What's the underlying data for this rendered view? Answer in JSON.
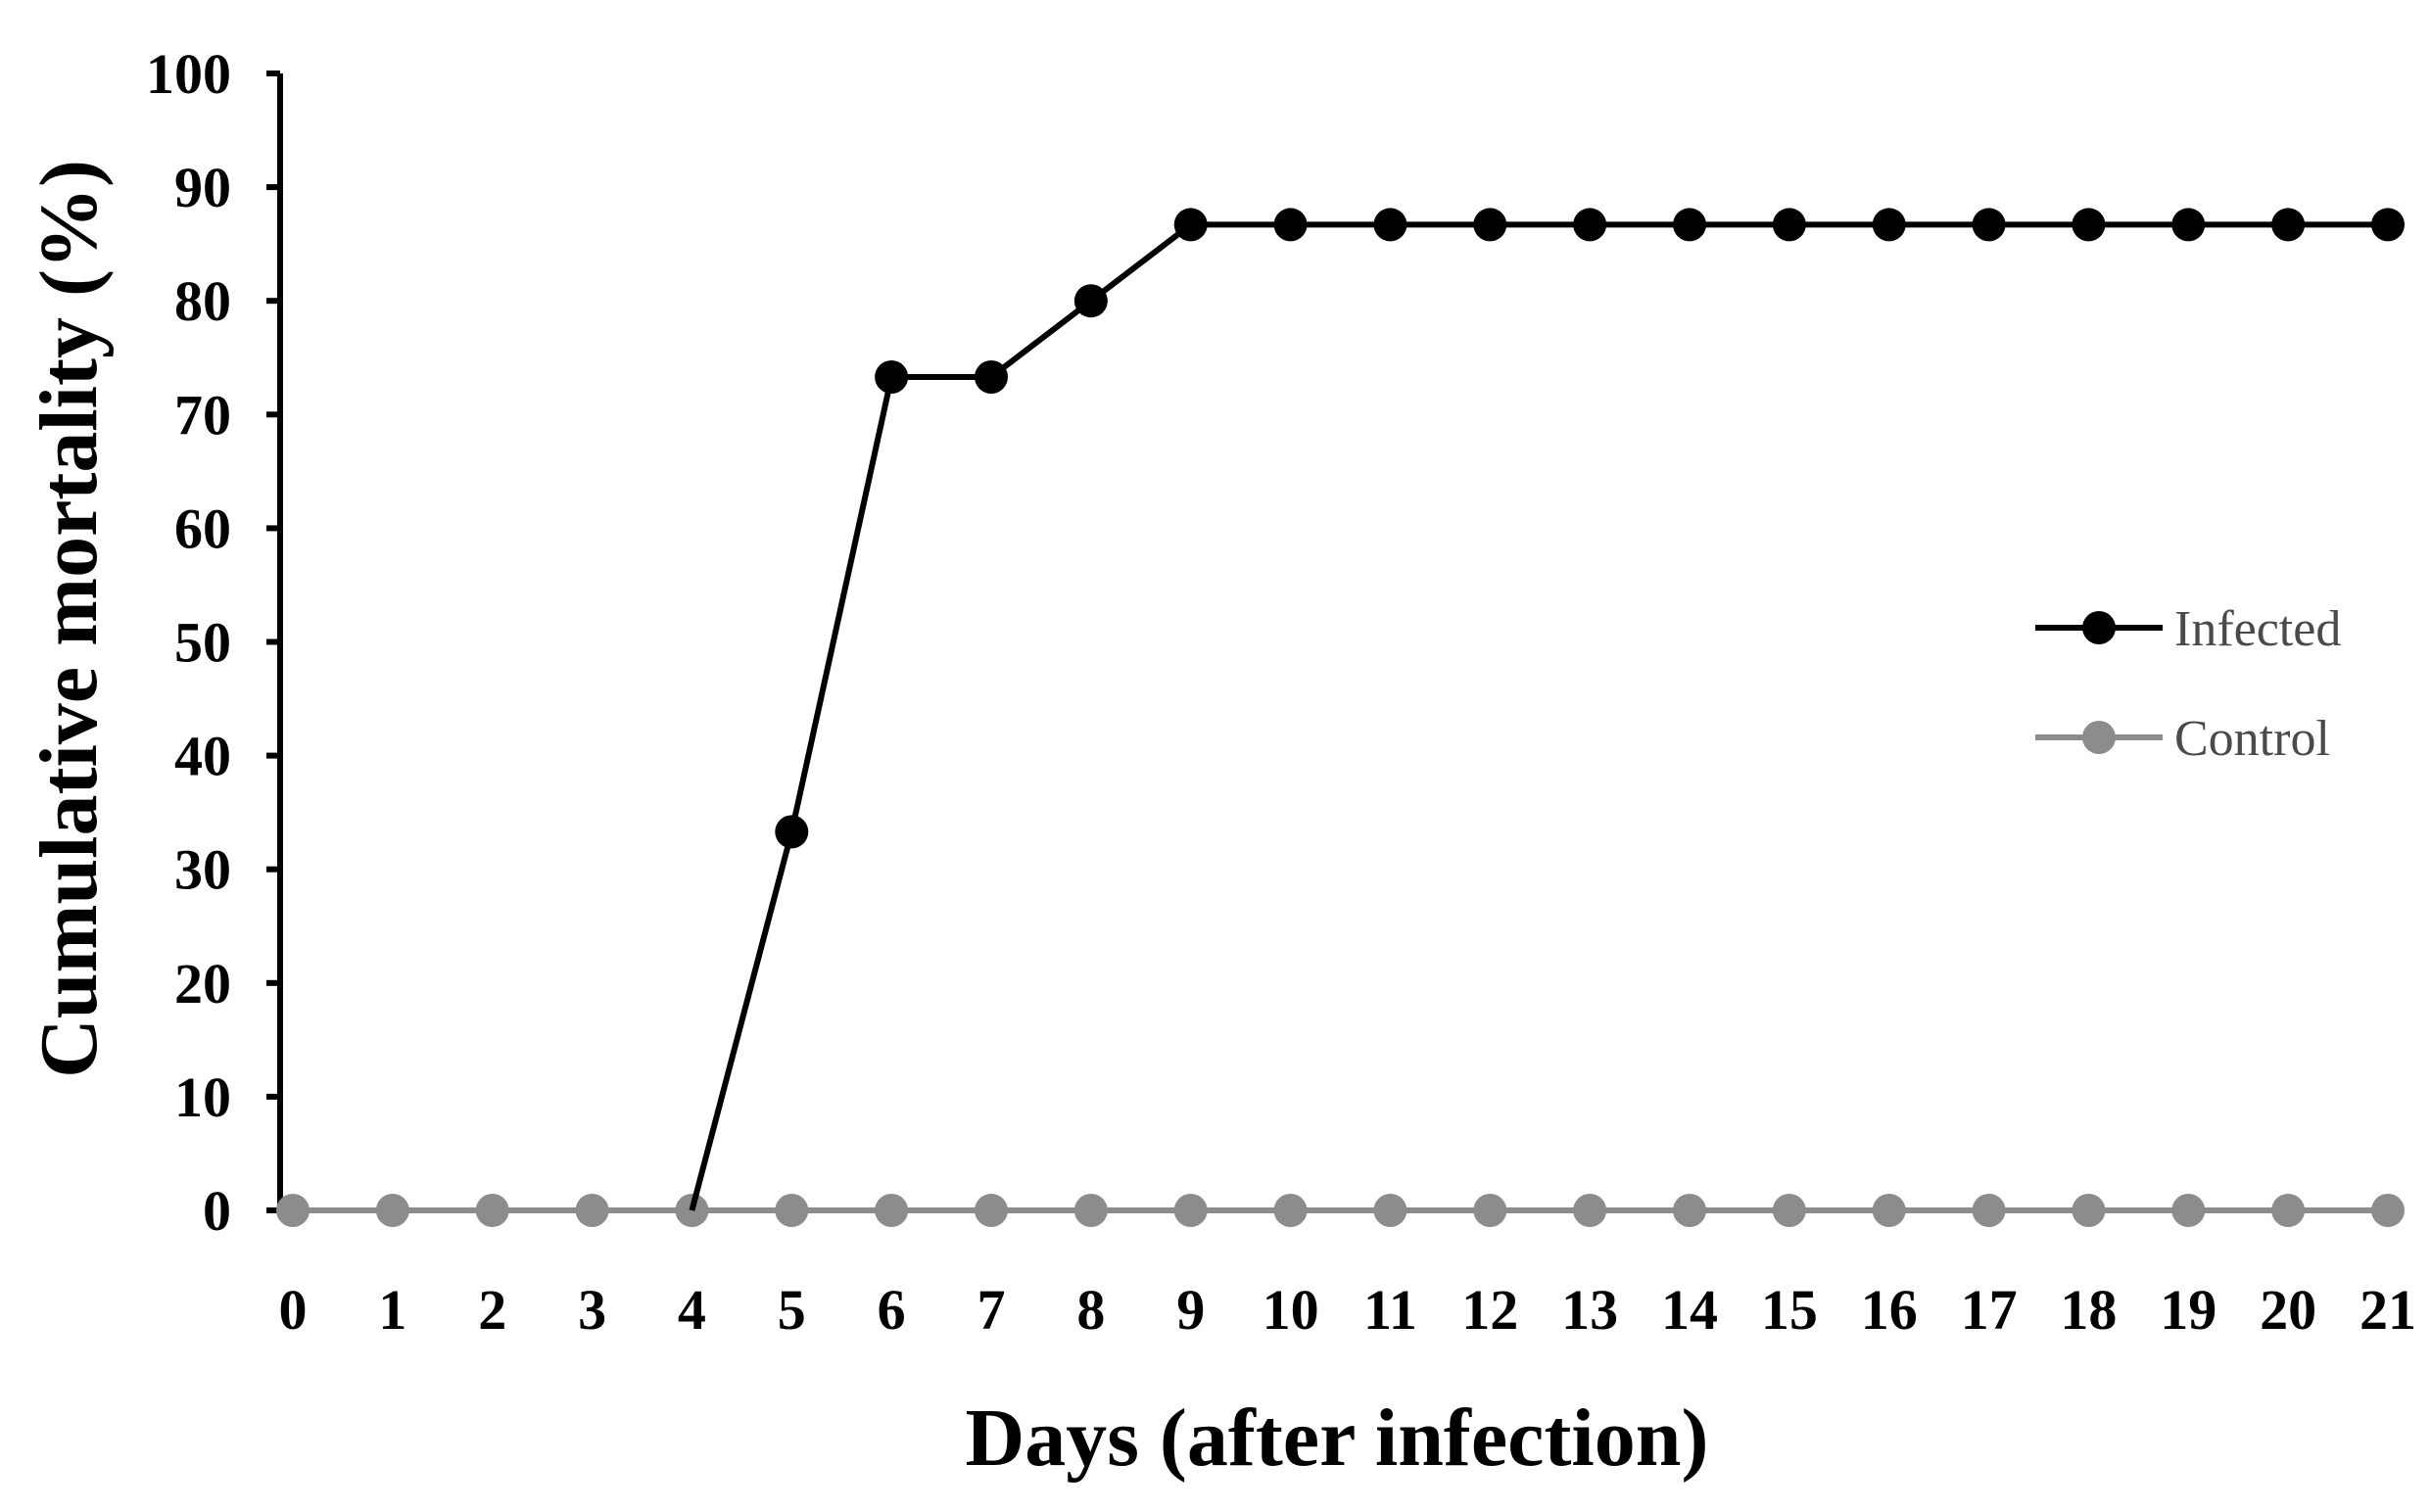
{
  "chart_data": {
    "type": "line",
    "title": "",
    "xlabel": "Days (after infection)",
    "ylabel": "Cumulative mortality (%)",
    "x": [
      0,
      1,
      2,
      3,
      4,
      5,
      6,
      7,
      8,
      9,
      10,
      11,
      12,
      13,
      14,
      15,
      16,
      17,
      18,
      19,
      20,
      21
    ],
    "xlim": [
      0,
      21
    ],
    "ylim": [
      0,
      100
    ],
    "yticks": [
      0,
      10,
      20,
      30,
      40,
      50,
      60,
      70,
      80,
      90,
      100
    ],
    "grid": false,
    "legend_position": "right",
    "series": [
      {
        "name": "Infected",
        "color": "#000000",
        "values": [
          null,
          null,
          null,
          null,
          0,
          33.3,
          73.3,
          73.3,
          80,
          86.7,
          86.7,
          86.7,
          86.7,
          86.7,
          86.7,
          86.7,
          86.7,
          86.7,
          86.7,
          86.7,
          86.7,
          86.7
        ]
      },
      {
        "name": "Control",
        "color": "#8c8c8c",
        "values": [
          0,
          0,
          0,
          0,
          0,
          0,
          0,
          0,
          0,
          0,
          0,
          0,
          0,
          0,
          0,
          0,
          0,
          0,
          0,
          0,
          0,
          0
        ]
      }
    ]
  }
}
